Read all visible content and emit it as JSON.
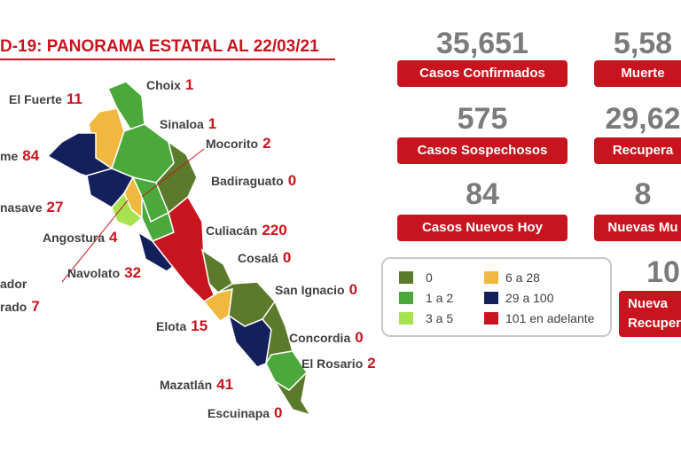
{
  "header": {
    "title": "D-19: PANORAMA ESTATAL AL 22/03/21"
  },
  "municipalities": [
    {
      "name": "Choix",
      "value": "1"
    },
    {
      "name": "El Fuerte",
      "value": "11"
    },
    {
      "name": "Sinaloa",
      "value": "1"
    },
    {
      "name": "Mocorito",
      "value": "2"
    },
    {
      "name": "me",
      "value": "84"
    },
    {
      "name": "Badiraguato",
      "value": "0"
    },
    {
      "name": "nasave",
      "value": "27"
    },
    {
      "name": "Angostura",
      "value": "4"
    },
    {
      "name": "Culiacán",
      "value": "220"
    },
    {
      "name": "Cosalá",
      "value": "0"
    },
    {
      "name": "Navolato",
      "value": "32"
    },
    {
      "name": "ador",
      "value": null
    },
    {
      "name": "rado",
      "value": "7"
    },
    {
      "name": "San Ignacio",
      "value": "0"
    },
    {
      "name": "Elota",
      "value": "15"
    },
    {
      "name": "Concordia",
      "value": "0"
    },
    {
      "name": "El Rosario",
      "value": "2"
    },
    {
      "name": "Mazatlán",
      "value": "41"
    },
    {
      "name": "Escuinapa",
      "value": "0"
    }
  ],
  "stats": [
    {
      "number": "35,651",
      "label": "Casos Confirmados"
    },
    {
      "number": "5,58",
      "label": "Muerte"
    },
    {
      "number": "575",
      "label": "Casos Sospechosos"
    },
    {
      "number": "29,62",
      "label": "Recupera"
    },
    {
      "number": "84",
      "label": "Casos Nuevos Hoy"
    },
    {
      "number": "8",
      "label": "Nuevas Mu"
    },
    {
      "number": "10",
      "label": "Nueva\nRecuper"
    }
  ],
  "legend": [
    {
      "label": "0",
      "color": "#5b7a2c"
    },
    {
      "label": "1 a 2",
      "color": "#4aa93a"
    },
    {
      "label": "3 a 5",
      "color": "#a6e34e"
    },
    {
      "label": "6 a 28",
      "color": "#f0b83e"
    },
    {
      "label": "29 a 100",
      "color": "#14205c"
    },
    {
      "label": "101 en adelante",
      "color": "#c8141e"
    }
  ]
}
